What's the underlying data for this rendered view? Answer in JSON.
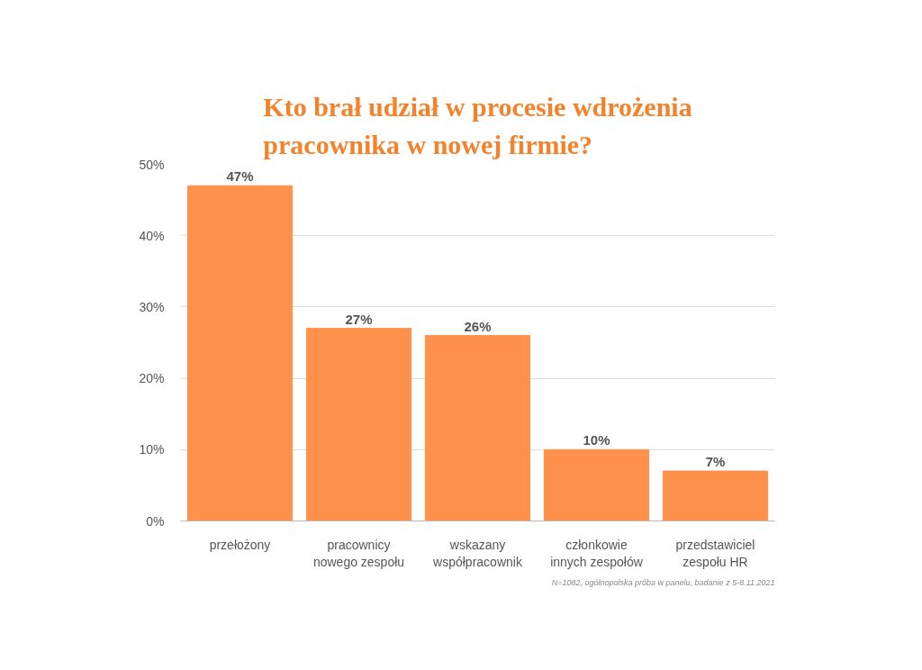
{
  "chart_data": {
    "type": "bar",
    "title": "Kto brał udział w procesie wdrożenia\npracownika w nowej firmie?",
    "categories": [
      "przełożony",
      "pracownicy nowego zespołu",
      "wskazany współpracownik",
      "członkowie innych zespołów",
      "przedstawiciel zespołu HR"
    ],
    "values": [
      47,
      27,
      26,
      10,
      7
    ],
    "color": "#ff914d",
    "value_labels": [
      "47%",
      "27%",
      "26%",
      "10%",
      "7%"
    ],
    "ylim": [
      0,
      50
    ],
    "yticks": [
      {
        "value": 0,
        "label": "0%"
      },
      {
        "value": 10,
        "label": "10%"
      },
      {
        "value": 20,
        "label": "20%"
      },
      {
        "value": 30,
        "label": "30%"
      },
      {
        "value": 40,
        "label": "40%"
      },
      {
        "value": 50,
        "label": "50%"
      }
    ],
    "grid": "y",
    "annotations": [
      "N=1082, ogólnopolska próba w panelu, badanie z 5-8.11.2021"
    ]
  }
}
